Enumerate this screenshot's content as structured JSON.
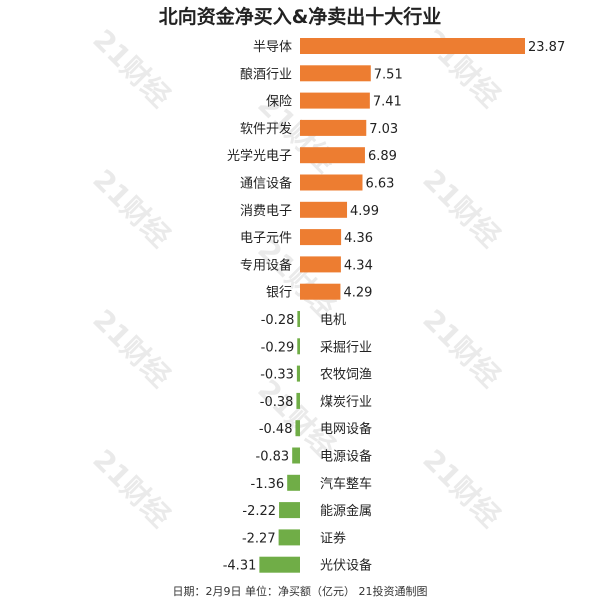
{
  "chart_data": {
    "type": "bar",
    "orientation": "horizontal",
    "title": "北向资金净买入&净卖出十大行业",
    "footer": "日期：2月9日  单位：净买额（亿元）  21投资通制图",
    "watermark": "21财经",
    "categories": [
      "半导体",
      "酿酒行业",
      "保险",
      "软件开发",
      "光学光电子",
      "通信设备",
      "消费电子",
      "电子元件",
      "专用设备",
      "银行",
      "电机",
      "采掘行业",
      "农牧饲渔",
      "煤炭行业",
      "电网设备",
      "电源设备",
      "汽车整车",
      "能源金属",
      "证券",
      "光伏设备"
    ],
    "values": [
      23.87,
      7.51,
      7.41,
      7.03,
      6.89,
      6.63,
      4.99,
      4.36,
      4.34,
      4.29,
      -0.28,
      -0.29,
      -0.33,
      -0.38,
      -0.48,
      -0.83,
      -1.36,
      -2.22,
      -2.27,
      -4.31
    ],
    "value_labels": [
      "23.87",
      "7.51",
      "7.41",
      "7.03",
      "6.89",
      "6.63",
      "4.99",
      "4.36",
      "4.34",
      "4.29",
      "-0.28",
      "-0.29",
      "-0.33",
      "-0.38",
      "-0.48",
      "-0.83",
      "-1.36",
      "-2.22",
      "-2.27",
      "-4.31"
    ],
    "positive_color": "#ed7d31",
    "negative_color": "#70ad47",
    "legend": "none",
    "grid": false
  }
}
